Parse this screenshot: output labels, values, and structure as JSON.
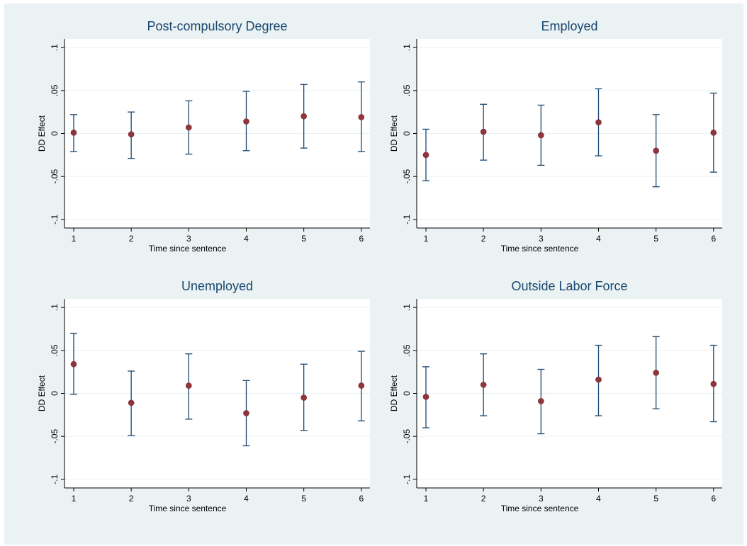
{
  "colors": {
    "figure_background": "#eaf2f3",
    "plot_background": "#ffffff",
    "error_bar": "#1a476f",
    "point": "#90353b",
    "gridline": "#eaf2f3",
    "title": "#1a476f"
  },
  "chart_data": [
    {
      "type": "scatter",
      "error_bars": true,
      "title": "Post-compulsory Degree",
      "xlabel": "Time since sentence",
      "ylabel": "DD Effect",
      "x": [
        1,
        2,
        3,
        4,
        5,
        6
      ],
      "x_ticks": [
        "1",
        "2",
        "3",
        "4",
        "5",
        "6"
      ],
      "y_ticks": [
        ".1",
        ".05",
        "0",
        "-.05",
        "-.1"
      ],
      "y": [
        0.001,
        -0.001,
        0.007,
        0.014,
        0.02,
        0.019
      ],
      "ci_low": [
        -0.021,
        -0.029,
        -0.024,
        -0.02,
        -0.017,
        -0.021
      ],
      "ci_high": [
        0.022,
        0.025,
        0.038,
        0.049,
        0.057,
        0.06
      ],
      "ylim": [
        -0.11,
        0.11
      ],
      "grid": true
    },
    {
      "type": "scatter",
      "error_bars": true,
      "title": "Employed",
      "xlabel": "Time since sentence",
      "ylabel": "DD Effect",
      "x": [
        1,
        2,
        3,
        4,
        5,
        6
      ],
      "x_ticks": [
        "1",
        "2",
        "3",
        "4",
        "5",
        "6"
      ],
      "y_ticks": [
        ".1",
        ".05",
        "0",
        "-.05",
        "-.1"
      ],
      "y": [
        -0.025,
        0.002,
        -0.002,
        0.013,
        -0.02,
        0.001
      ],
      "ci_low": [
        -0.055,
        -0.031,
        -0.037,
        -0.026,
        -0.062,
        -0.045
      ],
      "ci_high": [
        0.005,
        0.034,
        0.033,
        0.052,
        0.022,
        0.047
      ],
      "ylim": [
        -0.11,
        0.11
      ],
      "grid": true
    },
    {
      "type": "scatter",
      "error_bars": true,
      "title": "Unemployed",
      "xlabel": "Time since sentence",
      "ylabel": "DD Effect",
      "x": [
        1,
        2,
        3,
        4,
        5,
        6
      ],
      "x_ticks": [
        "1",
        "2",
        "3",
        "4",
        "5",
        "6"
      ],
      "y_ticks": [
        ".1",
        ".05",
        "0",
        "-.05",
        "-.1"
      ],
      "y": [
        0.034,
        -0.011,
        0.009,
        -0.023,
        -0.005,
        0.009
      ],
      "ci_low": [
        -0.001,
        -0.049,
        -0.03,
        -0.061,
        -0.043,
        -0.032
      ],
      "ci_high": [
        0.07,
        0.026,
        0.046,
        0.015,
        0.034,
        0.049
      ],
      "ylim": [
        -0.11,
        0.11
      ],
      "grid": true
    },
    {
      "type": "scatter",
      "error_bars": true,
      "title": "Outside Labor Force",
      "xlabel": "Time since sentence",
      "ylabel": "DD Effect",
      "x": [
        1,
        2,
        3,
        4,
        5,
        6
      ],
      "x_ticks": [
        "1",
        "2",
        "3",
        "4",
        "5",
        "6"
      ],
      "y_ticks": [
        ".1",
        ".05",
        "0",
        "-.05",
        "-.1"
      ],
      "y": [
        -0.004,
        0.01,
        -0.009,
        0.016,
        0.024,
        0.011
      ],
      "ci_low": [
        -0.04,
        -0.026,
        -0.047,
        -0.026,
        -0.018,
        -0.033
      ],
      "ci_high": [
        0.031,
        0.046,
        0.028,
        0.056,
        0.066,
        0.056
      ],
      "ylim": [
        -0.11,
        0.11
      ],
      "grid": true
    }
  ]
}
